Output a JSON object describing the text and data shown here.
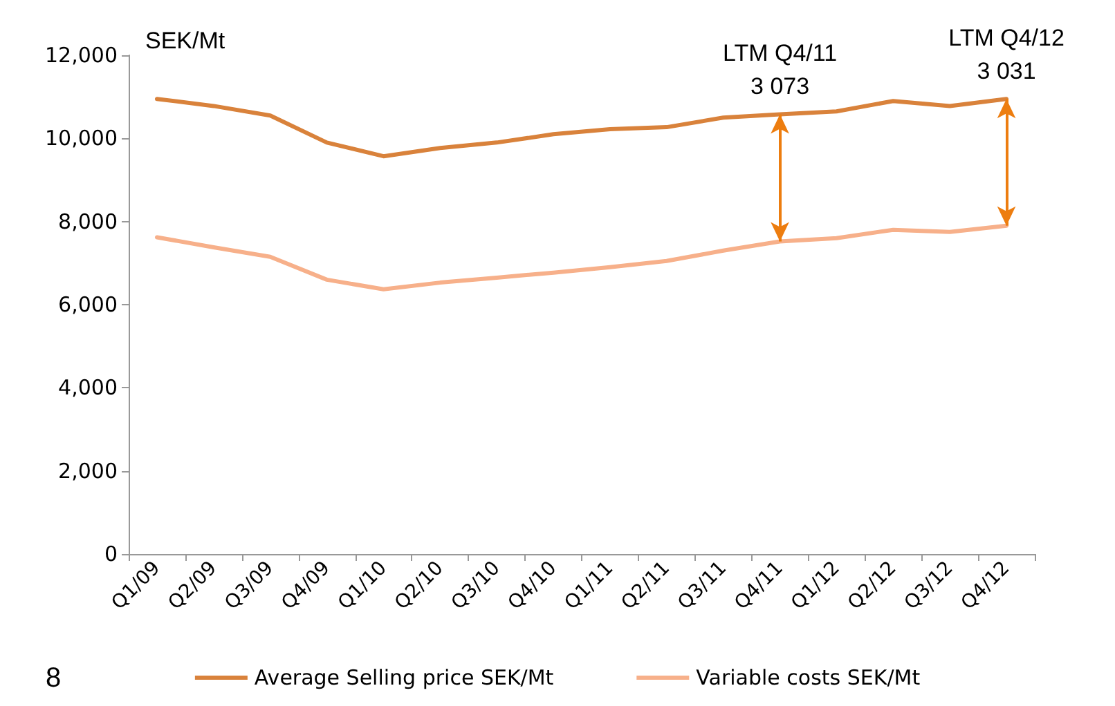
{
  "chart_data": {
    "type": "line",
    "ylabel": "SEK/Mt",
    "categories": [
      "Q1/09",
      "Q2/09",
      "Q3/09",
      "Q4/09",
      "Q1/10",
      "Q2/10",
      "Q3/10",
      "Q4/10",
      "Q1/11",
      "Q2/11",
      "Q3/11",
      "Q4/11",
      "Q1/12",
      "Q2/12",
      "Q3/12",
      "Q4/12"
    ],
    "series": [
      {
        "name": "Average Selling price SEK/Mt",
        "color": "#d9823b",
        "values": [
          10950,
          10780,
          10550,
          9900,
          9570,
          9770,
          9900,
          10100,
          10220,
          10270,
          10500,
          10580,
          10650,
          10900,
          10780,
          10950
        ]
      },
      {
        "name": "Variable costs SEK/Mt",
        "color": "#f7b08a",
        "values": [
          7620,
          7380,
          7150,
          6600,
          6370,
          6530,
          6650,
          6770,
          6900,
          7050,
          7300,
          7520,
          7600,
          7800,
          7750,
          7900
        ]
      }
    ],
    "ylim": [
      0,
      12000
    ],
    "yticks": [
      0,
      {
        "value": 2000,
        "label": "2,000"
      },
      {
        "value": 4000,
        "label": "4,000"
      },
      {
        "value": 6000,
        "label": "6,000"
      },
      {
        "value": 8000,
        "label": "8,000"
      },
      {
        "value": 10000,
        "label": "10,000"
      },
      {
        "value": 12000,
        "label": "12,000"
      }
    ],
    "grid": false,
    "legend": "bottom",
    "marker": "none",
    "line_style": "solid",
    "annotations": [
      {
        "text": "LTM Q4/11\n3 073",
        "x": "Q4/11",
        "y": 10580
      },
      {
        "text": "LTM Q4/12\n3 031",
        "x": "Q4/12",
        "y": 10950
      },
      "8"
    ]
  }
}
